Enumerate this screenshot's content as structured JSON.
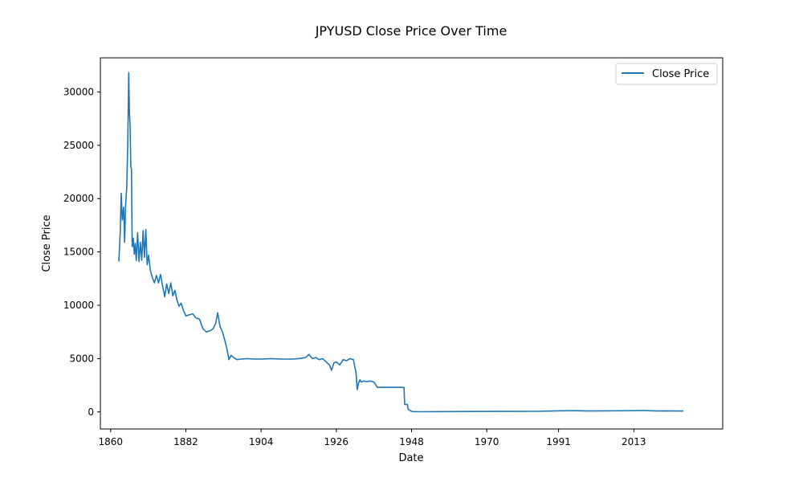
{
  "chart_data": {
    "type": "line",
    "title": "JPYUSD Close Price Over Time",
    "xlabel": "Date",
    "ylabel": "Close Price",
    "xlim": [
      1857.0,
      2039.0
    ],
    "ylim": [
      -1600,
      33200
    ],
    "x_ticks": [
      1860,
      1882,
      1904,
      1926,
      1948,
      1970,
      1991,
      2013
    ],
    "y_ticks": [
      0,
      5000,
      10000,
      15000,
      20000,
      25000,
      30000
    ],
    "grid": false,
    "legend_position": "top-right",
    "colors": {
      "line": "#1f77b4"
    },
    "series": [
      {
        "name": "Close Price",
        "x": [
          1862.4,
          1862.8,
          1863.1,
          1863.4,
          1863.8,
          1864.1,
          1864.4,
          1864.7,
          1865.0,
          1865.3,
          1865.5,
          1865.7,
          1865.9,
          1866.1,
          1866.3,
          1866.6,
          1866.9,
          1867.2,
          1867.5,
          1867.9,
          1868.3,
          1868.7,
          1869.1,
          1869.5,
          1869.9,
          1870.3,
          1870.7,
          1871.1,
          1871.6,
          1872.2,
          1872.8,
          1873.4,
          1874.0,
          1874.6,
          1875.2,
          1875.8,
          1876.4,
          1877.0,
          1877.6,
          1878.2,
          1878.8,
          1879.4,
          1880.0,
          1880.6,
          1881.3,
          1882.0,
          1883.0,
          1884.0,
          1885.0,
          1886.0,
          1887.0,
          1888.0,
          1889.0,
          1890.0,
          1890.7,
          1891.3,
          1892.0,
          1892.7,
          1893.4,
          1894.0,
          1894.6,
          1895.2,
          1896.0,
          1897.0,
          1898.0,
          1900.0,
          1902.0,
          1904.0,
          1907.0,
          1910.0,
          1913.0,
          1915.0,
          1917.0,
          1918.0,
          1919.0,
          1920.0,
          1921.0,
          1922.0,
          1923.0,
          1924.0,
          1924.6,
          1925.3,
          1926.0,
          1927.0,
          1928.0,
          1929.0,
          1930.0,
          1931.0,
          1931.8,
          1932.1,
          1932.5,
          1932.9,
          1933.3,
          1934.0,
          1935.0,
          1936.0,
          1937.0,
          1938.0,
          1939.0,
          1939.4,
          1940.0,
          1942.0,
          1944.0,
          1945.8,
          1946.0,
          1946.8,
          1947.0,
          1947.5,
          1948.0,
          1948.5,
          1949.0,
          1955.0,
          1965.0,
          1975.0,
          1985.0,
          1991.0,
          1995.0,
          2000.0,
          2005.0,
          2010.0,
          2013.0,
          2016.0,
          2018.0,
          2020.0,
          2022.0,
          2024.0,
          2026.0,
          2027.5
        ],
        "values": [
          14100,
          16800,
          20500,
          18000,
          19200,
          15900,
          19500,
          21000,
          25000,
          31800,
          28000,
          26900,
          23000,
          22800,
          15500,
          16300,
          14800,
          15800,
          14200,
          16800,
          14100,
          15900,
          14200,
          17000,
          14500,
          17100,
          13800,
          14700,
          13300,
          12600,
          12100,
          12800,
          12100,
          12900,
          11800,
          10800,
          12000,
          11100,
          12100,
          10900,
          11400,
          10500,
          9900,
          10200,
          9500,
          9000,
          9100,
          9200,
          8800,
          8700,
          7800,
          7500,
          7600,
          7800,
          8300,
          9300,
          8000,
          7500,
          6700,
          5900,
          4900,
          5300,
          5100,
          4900,
          4950,
          5000,
          4950,
          4950,
          5000,
          4950,
          4950,
          5000,
          5100,
          5400,
          5000,
          5100,
          4900,
          5000,
          4700,
          4400,
          3900,
          4600,
          4700,
          4400,
          4900,
          4800,
          5000,
          4900,
          3600,
          2100,
          2700,
          3000,
          2800,
          2900,
          2850,
          2900,
          2800,
          2300,
          2300,
          2300,
          2300,
          2300,
          2300,
          2300,
          700,
          700,
          250,
          150,
          60,
          30,
          20,
          30,
          40,
          50,
          60,
          100,
          120,
          90,
          100,
          110,
          120,
          130,
          110,
          90,
          100,
          90,
          90,
          80
        ]
      }
    ]
  }
}
